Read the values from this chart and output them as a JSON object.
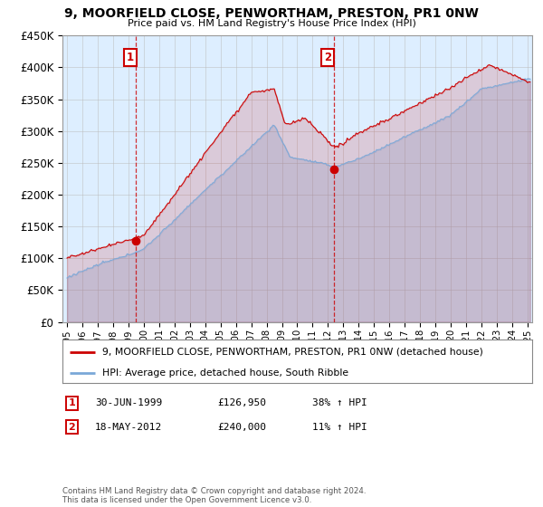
{
  "title": "9, MOORFIELD CLOSE, PENWORTHAM, PRESTON, PR1 0NW",
  "subtitle": "Price paid vs. HM Land Registry's House Price Index (HPI)",
  "legend_line1": "9, MOORFIELD CLOSE, PENWORTHAM, PRESTON, PR1 0NW (detached house)",
  "legend_line2": "HPI: Average price, detached house, South Ribble",
  "annotation1": {
    "label": "1",
    "date": "30-JUN-1999",
    "price": "£126,950",
    "change": "38% ↑ HPI"
  },
  "annotation2": {
    "label": "2",
    "date": "18-MAY-2012",
    "price": "£240,000",
    "change": "11% ↑ HPI"
  },
  "footer": "Contains HM Land Registry data © Crown copyright and database right 2024.\nThis data is licensed under the Open Government Licence v3.0.",
  "hpi_color": "#7aa8d8",
  "price_color": "#cc0000",
  "bg_color": "#ddeeff",
  "marker1_x": 1999.5,
  "marker1_y": 126950,
  "marker2_x": 2012.38,
  "marker2_y": 240000,
  "ylim": [
    0,
    450000
  ],
  "yticks": [
    0,
    50000,
    100000,
    150000,
    200000,
    250000,
    300000,
    350000,
    400000,
    450000
  ],
  "xlim_start": 1994.7,
  "xlim_end": 2025.3
}
